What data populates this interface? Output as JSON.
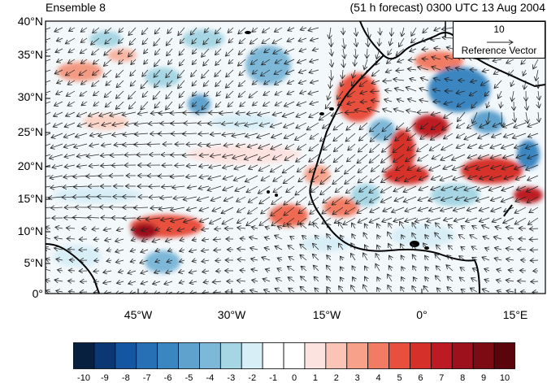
{
  "titles": {
    "left": "Ensemble 8",
    "right": "(51 h forecast) 0300 UTC 13 Aug 2004"
  },
  "axes": {
    "lat_labels": [
      "40°N",
      "35°N",
      "30°N",
      "25°N",
      "20°N",
      "15°N",
      "10°N",
      "5°N",
      "0°"
    ],
    "lon_labels": [
      "45°W",
      "30°W",
      "15°W",
      "0°",
      "15°E"
    ]
  },
  "reference_vector": {
    "magnitude": "10",
    "label": "Reference Vector"
  },
  "colorbar": {
    "labels": [
      "-10",
      "-9",
      "-8",
      "-7",
      "-6",
      "-5",
      "-4",
      "-3",
      "-2",
      "-1",
      "0",
      "1",
      "2",
      "3",
      "4",
      "5",
      "6",
      "7",
      "8",
      "9",
      "10"
    ],
    "colors": [
      "#08203f",
      "#0b3772",
      "#1556a3",
      "#2870b5",
      "#3a86c0",
      "#5ea2cd",
      "#7db8d8",
      "#a6d6e3",
      "#d8eef7",
      "#ffffff",
      "#ffffff",
      "#fde3e0",
      "#fbc4b4",
      "#f7a18b",
      "#f27b63",
      "#e8503d",
      "#d6302b",
      "#bd1a23",
      "#9c111c",
      "#7c0b14",
      "#5a040c"
    ]
  }
}
